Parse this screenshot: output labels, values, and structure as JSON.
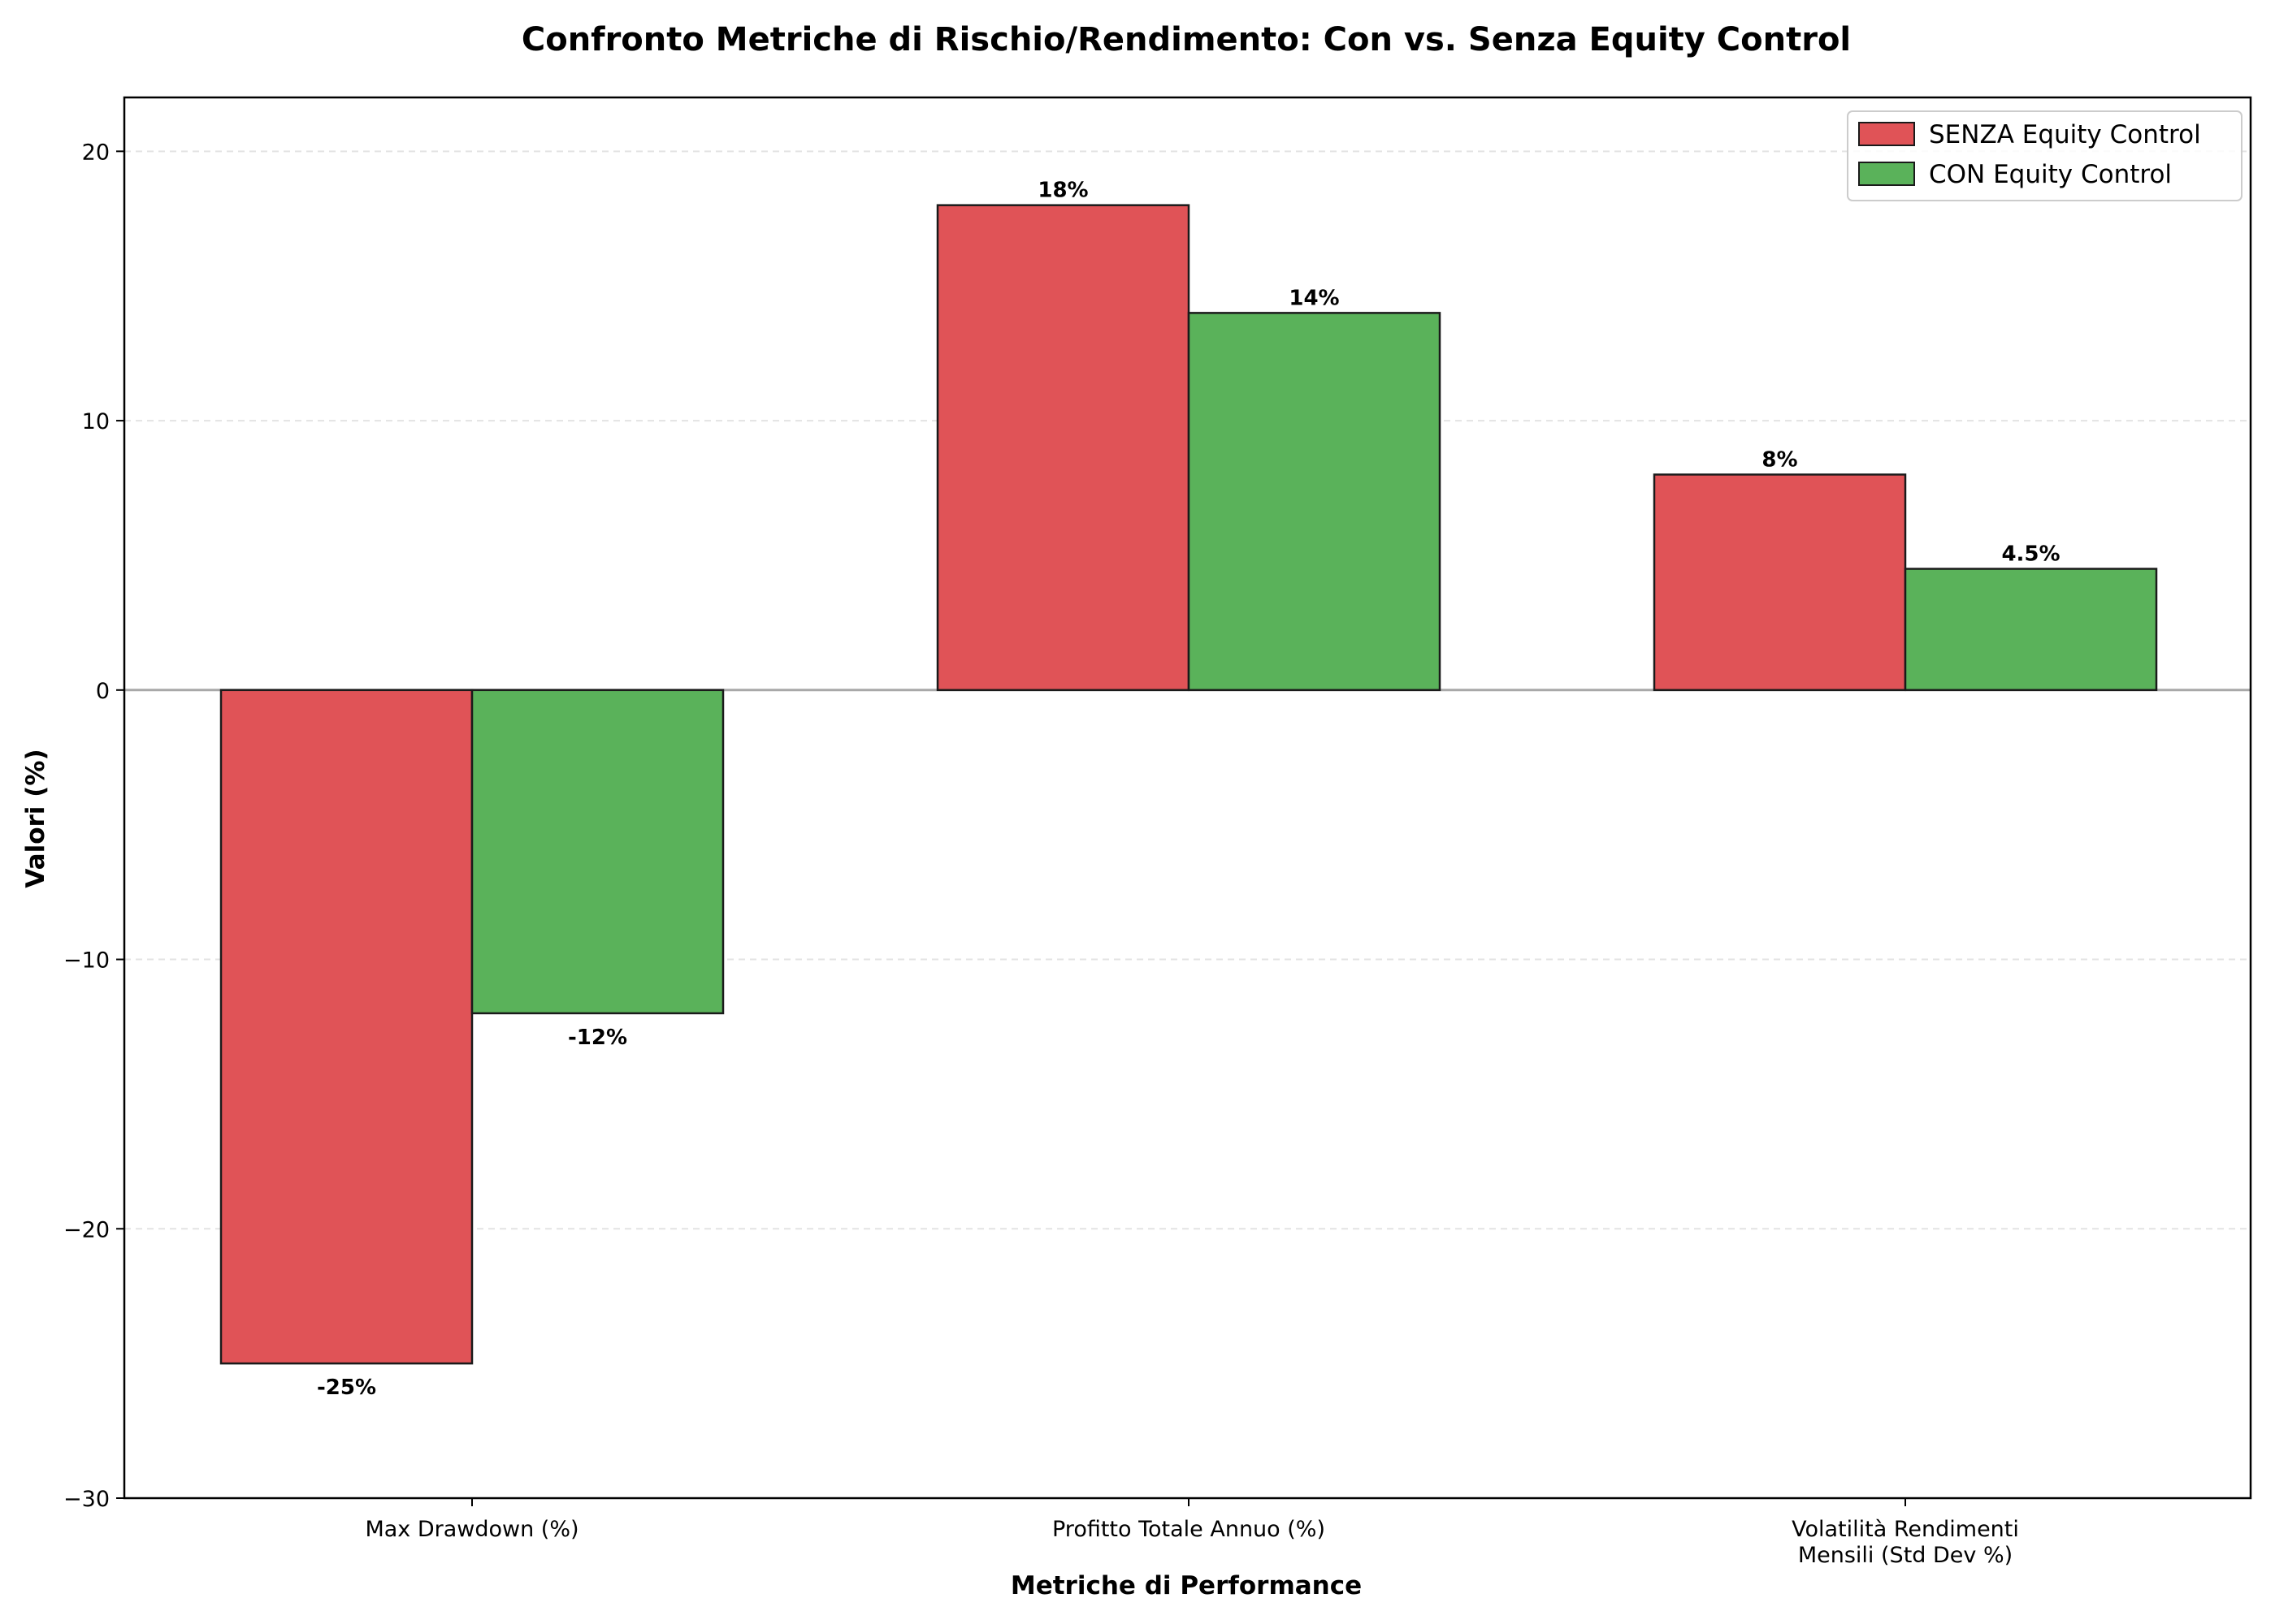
{
  "chart_data": {
    "type": "bar",
    "title": "Confronto Metriche di Rischio/Rendimento: Con vs. Senza Equity Control",
    "xlabel": "Metriche di Performance",
    "ylabel": "Valori (%)",
    "categories": [
      [
        "Max Drawdown (%)"
      ],
      [
        "Profitto Totale Annuo (%)"
      ],
      [
        "Volatilità Rendimenti",
        "Mensili (Std Dev %)"
      ]
    ],
    "series": [
      {
        "name": "SENZA Equity Control",
        "color": "#e05357",
        "values": [
          -25,
          18,
          8
        ],
        "labels": [
          "-25%",
          "18%",
          "8%"
        ]
      },
      {
        "name": "CON Equity Control",
        "color": "#5ab25a",
        "values": [
          -12,
          14,
          4.5
        ],
        "labels": [
          "-12%",
          "14%",
          "4.5%"
        ]
      }
    ],
    "ylim": [
      -30,
      22
    ],
    "yticks": [
      20,
      10,
      0,
      -10,
      -20,
      -30
    ],
    "ytick_labels": [
      "20",
      "10",
      "0",
      "−10",
      "−20",
      "−30"
    ],
    "grid": true,
    "legend_position": "top-right"
  }
}
